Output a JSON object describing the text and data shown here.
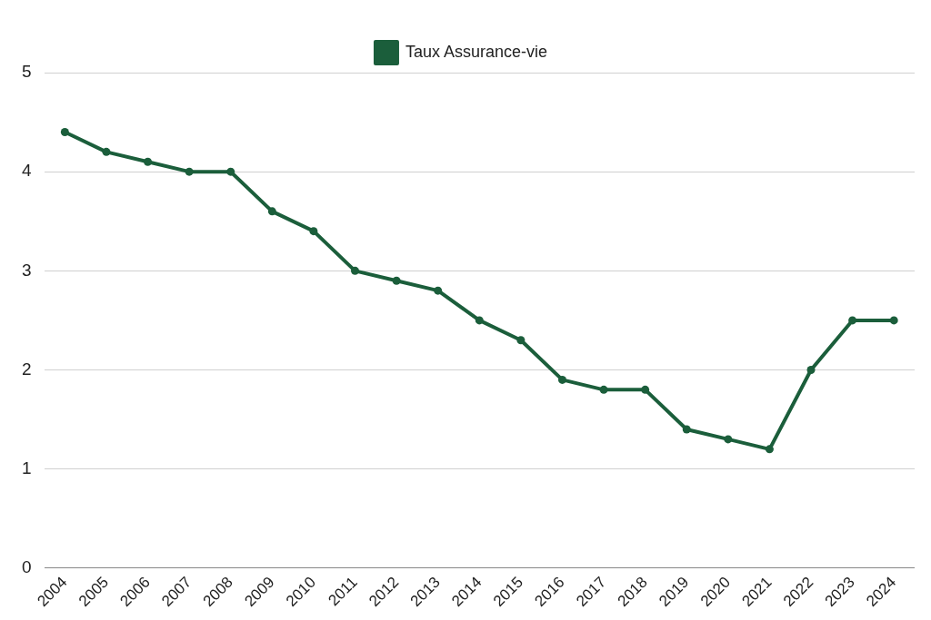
{
  "chart_data": {
    "type": "line",
    "categories": [
      "2004",
      "2005",
      "2006",
      "2007",
      "2008",
      "2009",
      "2010",
      "2011",
      "2012",
      "2013",
      "2014",
      "2015",
      "2016",
      "2017",
      "2018",
      "2019",
      "2020",
      "2021",
      "2022",
      "2023",
      "2024"
    ],
    "series": [
      {
        "name": "Taux Assurance-vie",
        "color": "#1b5e3b",
        "values": [
          4.4,
          4.2,
          4.1,
          4.0,
          4.0,
          3.6,
          3.4,
          3.0,
          2.9,
          2.8,
          2.5,
          2.3,
          1.9,
          1.8,
          1.8,
          1.4,
          1.3,
          1.2,
          2.0,
          2.5,
          2.5
        ]
      }
    ],
    "ylim": [
      0,
      5
    ],
    "yticks": [
      0,
      1,
      2,
      3,
      4,
      5
    ],
    "grid": "y",
    "legend": "top",
    "marker": "circle",
    "line_style": "solid"
  }
}
